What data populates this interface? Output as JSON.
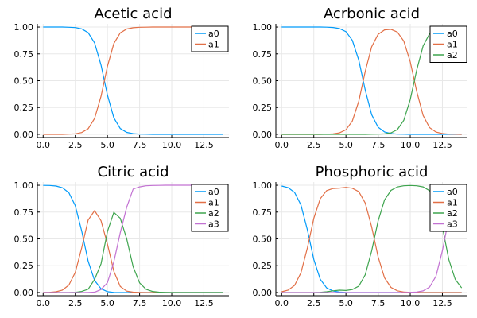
{
  "colors": {
    "a0": "#009af9",
    "a1": "#e26f46",
    "a2": "#3da44d",
    "a3": "#c271d2"
  },
  "chart_data": [
    {
      "type": "line",
      "title": "Acetic acid",
      "xlim": [
        0,
        14
      ],
      "ylim": [
        0,
        1
      ],
      "x_ticks": [
        "0.0",
        "2.5",
        "5.0",
        "7.5",
        "10.0",
        "12.5"
      ],
      "y_ticks": [
        "0.00",
        "0.25",
        "0.50",
        "0.75",
        "1.00"
      ],
      "grid": true,
      "legend": "top-right",
      "pKa": [
        4.76
      ],
      "x": [
        0,
        0.5,
        1,
        1.5,
        2,
        2.5,
        3,
        3.5,
        4,
        4.5,
        5,
        5.5,
        6,
        6.5,
        7,
        7.5,
        8,
        8.5,
        9,
        9.5,
        10,
        10.5,
        11,
        11.5,
        12,
        12.5,
        13,
        13.5,
        14
      ],
      "series": [
        {
          "name": "a0",
          "values": [
            1.0,
            1.0,
            1.0,
            1.0,
            0.998,
            0.995,
            0.983,
            0.948,
            0.852,
            0.645,
            0.365,
            0.154,
            0.054,
            0.018,
            0.006,
            0.002,
            0.001,
            0.0,
            0.0,
            0.0,
            0.0,
            0.0,
            0.0,
            0.0,
            0.0,
            0.0,
            0.0,
            0.0,
            0.0
          ]
        },
        {
          "name": "a1",
          "values": [
            0.0,
            0.0,
            0.0,
            0.0,
            0.002,
            0.005,
            0.017,
            0.052,
            0.148,
            0.355,
            0.635,
            0.846,
            0.946,
            0.982,
            0.994,
            0.998,
            0.999,
            1.0,
            1.0,
            1.0,
            1.0,
            1.0,
            1.0,
            1.0,
            1.0,
            1.0,
            1.0,
            1.0,
            1.0
          ]
        }
      ]
    },
    {
      "type": "line",
      "title": "Acrbonic acid",
      "xlim": [
        0,
        14
      ],
      "ylim": [
        0,
        1
      ],
      "x_ticks": [
        "0.0",
        "2.5",
        "5.0",
        "7.5",
        "10.0",
        "12.5"
      ],
      "y_ticks": [
        "0.00",
        "0.25",
        "0.50",
        "0.75",
        "1.00"
      ],
      "grid": true,
      "legend": "top-right",
      "pKa": [
        6.35,
        10.33
      ],
      "x": [
        0,
        0.5,
        1,
        1.5,
        2,
        2.5,
        3,
        3.5,
        4,
        4.5,
        5,
        5.5,
        6,
        6.5,
        7,
        7.5,
        8,
        8.5,
        9,
        9.5,
        10,
        10.5,
        11,
        11.5,
        12,
        12.5,
        13,
        13.5,
        14
      ],
      "series": [
        {
          "name": "a0",
          "values": [
            1.0,
            1.0,
            1.0,
            1.0,
            1.0,
            1.0,
            1.0,
            0.999,
            0.996,
            0.986,
            0.957,
            0.876,
            0.691,
            0.414,
            0.183,
            0.066,
            0.022,
            0.007,
            0.002,
            0.001,
            0.0,
            0.0,
            0.0,
            0.0,
            0.0,
            0.0,
            0.0,
            0.0,
            0.0
          ]
        },
        {
          "name": "a1",
          "values": [
            0.0,
            0.0,
            0.0,
            0.0,
            0.0,
            0.0,
            0.0,
            0.001,
            0.004,
            0.014,
            0.043,
            0.124,
            0.309,
            0.586,
            0.816,
            0.932,
            0.974,
            0.979,
            0.954,
            0.869,
            0.677,
            0.403,
            0.176,
            0.063,
            0.021,
            0.007,
            0.002,
            0.001,
            0.0
          ]
        },
        {
          "name": "a2",
          "values": [
            0.0,
            0.0,
            0.0,
            0.0,
            0.0,
            0.0,
            0.0,
            0.0,
            0.0,
            0.0,
            0.0,
            0.0,
            0.0,
            0.0,
            0.001,
            0.002,
            0.004,
            0.014,
            0.044,
            0.13,
            0.323,
            0.597,
            0.824,
            0.937,
            0.979,
            0.993,
            0.998,
            0.999,
            1.0
          ]
        }
      ]
    },
    {
      "type": "line",
      "title": "Citric acid",
      "xlim": [
        0,
        14
      ],
      "ylim": [
        0,
        1
      ],
      "x_ticks": [
        "0.0",
        "2.5",
        "5.0",
        "7.5",
        "10.0",
        "12.5"
      ],
      "y_ticks": [
        "0.00",
        "0.25",
        "0.50",
        "0.75",
        "1.00"
      ],
      "grid": true,
      "legend": "top-right",
      "pKa": [
        3.13,
        4.76,
        6.4
      ],
      "x": [
        0,
        0.5,
        1,
        1.5,
        2,
        2.5,
        3,
        3.5,
        4,
        4.5,
        5,
        5.5,
        6,
        6.5,
        7,
        7.5,
        8,
        8.5,
        9,
        9.5,
        10,
        10.5,
        11,
        11.5,
        12,
        12.5,
        13,
        13.5,
        14
      ],
      "series": [
        {
          "name": "a0",
          "values": [
            0.999,
            0.998,
            0.993,
            0.977,
            0.931,
            0.81,
            0.573,
            0.292,
            0.112,
            0.035,
            0.008,
            0.001,
            0.0,
            0.0,
            0.0,
            0.0,
            0.0,
            0.0,
            0.0,
            0.0,
            0.0,
            0.0,
            0.0,
            0.0,
            0.0,
            0.0,
            0.0,
            0.0,
            0.0
          ]
        },
        {
          "name": "a1",
          "values": [
            0.001,
            0.002,
            0.007,
            0.023,
            0.069,
            0.188,
            0.418,
            0.676,
            0.763,
            0.669,
            0.45,
            0.198,
            0.056,
            0.013,
            0.003,
            0.001,
            0.0,
            0.0,
            0.0,
            0.0,
            0.0,
            0.0,
            0.0,
            0.0,
            0.0,
            0.0,
            0.0,
            0.0,
            0.0
          ]
        },
        {
          "name": "a2",
          "values": [
            0.0,
            0.0,
            0.0,
            0.0,
            0.0,
            0.002,
            0.01,
            0.031,
            0.122,
            0.268,
            0.57,
            0.747,
            0.692,
            0.5,
            0.24,
            0.09,
            0.03,
            0.01,
            0.003,
            0.001,
            0.0,
            0.0,
            0.0,
            0.0,
            0.0,
            0.0,
            0.0,
            0.0,
            0.0
          ]
        },
        {
          "name": "a3",
          "values": [
            0.0,
            0.0,
            0.0,
            0.0,
            0.0,
            0.0,
            0.0,
            0.001,
            0.003,
            0.028,
            0.092,
            0.286,
            0.558,
            0.796,
            0.965,
            0.985,
            0.995,
            0.998,
            0.999,
            1.0,
            1.0,
            1.0,
            1.0,
            1.0,
            1.0,
            1.0,
            1.0,
            1.0,
            1.0
          ]
        }
      ]
    },
    {
      "type": "line",
      "title": "Phosphoric acid",
      "xlim": [
        0,
        14
      ],
      "ylim": [
        0,
        1
      ],
      "x_ticks": [
        "0.0",
        "2.5",
        "5.0",
        "7.5",
        "10.0",
        "12.5"
      ],
      "y_ticks": [
        "0.00",
        "0.25",
        "0.50",
        "0.75",
        "1.00"
      ],
      "grid": true,
      "legend": "top-right",
      "pKa": [
        2.15,
        7.2,
        12.35
      ],
      "x": [
        0,
        0.5,
        1,
        1.5,
        2,
        2.5,
        3,
        3.5,
        4,
        4.5,
        5,
        5.5,
        6,
        6.5,
        7,
        7.5,
        8,
        8.5,
        9,
        9.5,
        10,
        10.5,
        11,
        11.5,
        12,
        12.5,
        13,
        13.5,
        14
      ],
      "series": [
        {
          "name": "a0",
          "values": [
            0.993,
            0.978,
            0.934,
            0.817,
            0.585,
            0.309,
            0.124,
            0.043,
            0.014,
            0.004,
            0.001,
            0.0,
            0.0,
            0.0,
            0.0,
            0.0,
            0.0,
            0.0,
            0.0,
            0.0,
            0.0,
            0.0,
            0.0,
            0.0,
            0.0,
            0.0,
            0.0,
            0.0,
            0.0
          ]
        },
        {
          "name": "a1",
          "values": [
            0.007,
            0.022,
            0.066,
            0.183,
            0.415,
            0.691,
            0.874,
            0.95,
            0.97,
            0.974,
            0.98,
            0.972,
            0.94,
            0.835,
            0.612,
            0.333,
            0.137,
            0.048,
            0.016,
            0.005,
            0.002,
            0.0,
            0.0,
            0.0,
            0.0,
            0.0,
            0.0,
            0.0,
            0.0
          ]
        },
        {
          "name": "a2",
          "values": [
            0.0,
            0.0,
            0.0,
            0.0,
            0.0,
            0.0,
            0.002,
            0.007,
            0.016,
            0.022,
            0.019,
            0.028,
            0.06,
            0.165,
            0.388,
            0.667,
            0.863,
            0.952,
            0.984,
            0.995,
            0.998,
            0.995,
            0.985,
            0.95,
            0.847,
            0.609,
            0.308,
            0.123,
            0.043
          ]
        },
        {
          "name": "a3",
          "values": [
            0.0,
            0.0,
            0.0,
            0.0,
            0.0,
            0.0,
            0.0,
            0.0,
            0.0,
            0.0,
            0.0,
            0.0,
            0.0,
            0.0,
            0.0,
            0.0,
            0.0,
            0.0,
            0.0,
            0.0,
            0.002,
            0.005,
            0.015,
            0.05,
            0.152,
            0.391,
            0.692,
            0.877,
            0.957
          ]
        }
      ]
    }
  ]
}
